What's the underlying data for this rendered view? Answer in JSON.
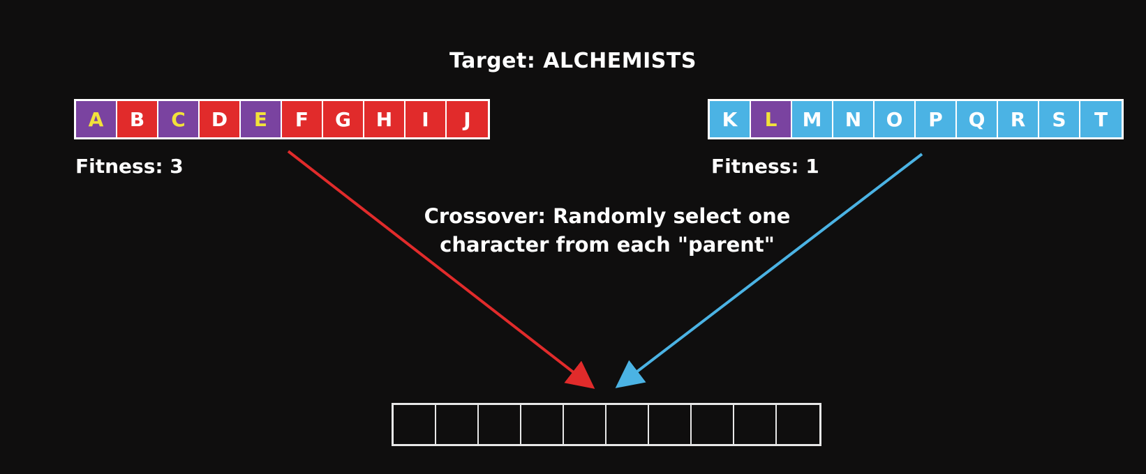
{
  "title": "Target: ALCHEMISTS",
  "colors": {
    "background": "#0f0e0e",
    "red": "#e12b2b",
    "purple": "#7a43a0",
    "blue": "#4bb3e4",
    "highlight_text": "#f2e23a",
    "normal_text": "#ffffff"
  },
  "parents": [
    {
      "fitness_label": "Fitness: 3",
      "cells": [
        {
          "letter": "A",
          "match": true,
          "color": "purple"
        },
        {
          "letter": "B",
          "match": false,
          "color": "red"
        },
        {
          "letter": "C",
          "match": true,
          "color": "purple"
        },
        {
          "letter": "D",
          "match": false,
          "color": "red"
        },
        {
          "letter": "E",
          "match": true,
          "color": "purple"
        },
        {
          "letter": "F",
          "match": false,
          "color": "red"
        },
        {
          "letter": "G",
          "match": false,
          "color": "red"
        },
        {
          "letter": "H",
          "match": false,
          "color": "red"
        },
        {
          "letter": "I",
          "match": false,
          "color": "red"
        },
        {
          "letter": "J",
          "match": false,
          "color": "red"
        }
      ],
      "arrow_color": "red"
    },
    {
      "fitness_label": "Fitness: 1",
      "cells": [
        {
          "letter": "K",
          "match": false,
          "color": "blue"
        },
        {
          "letter": "L",
          "match": true,
          "color": "purple"
        },
        {
          "letter": "M",
          "match": false,
          "color": "blue"
        },
        {
          "letter": "N",
          "match": false,
          "color": "blue"
        },
        {
          "letter": "O",
          "match": false,
          "color": "blue"
        },
        {
          "letter": "P",
          "match": false,
          "color": "blue"
        },
        {
          "letter": "Q",
          "match": false,
          "color": "blue"
        },
        {
          "letter": "R",
          "match": false,
          "color": "blue"
        },
        {
          "letter": "S",
          "match": false,
          "color": "blue"
        },
        {
          "letter": "T",
          "match": false,
          "color": "blue"
        }
      ],
      "arrow_color": "blue"
    }
  ],
  "caption": {
    "line1": "Crossover: Randomly select one",
    "line2": "character from each \"parent\""
  },
  "child_cell_count": 10
}
